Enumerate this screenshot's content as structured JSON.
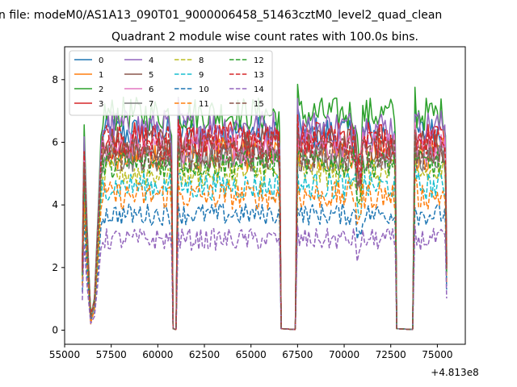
{
  "figure": {
    "suptitle": "n file: modeM0/AS1A13_090T01_9000006458_51463cztM0_level2_quad_clean",
    "title": "Quadrant 2 module wise count rates with 100.0s bins.",
    "offset_text": "+4.813e8"
  },
  "chart_data": {
    "type": "line",
    "title": "Quadrant 2 module wise count rates with 100.0s bins.",
    "xlabel": "",
    "ylabel": "",
    "x_offset": 481300000,
    "xlim": [
      55000,
      76500
    ],
    "ylim": [
      -0.45,
      9.05
    ],
    "xticks": [
      55000,
      57500,
      60000,
      62500,
      65000,
      67500,
      70000,
      72500,
      75000
    ],
    "xtick_labels": [
      "55000",
      "57500",
      "60000",
      "62500",
      "65000",
      "67500",
      "70000",
      "72500",
      "75000"
    ],
    "yticks": [
      0,
      2,
      4,
      6,
      8
    ],
    "ytick_labels": [
      "0",
      "2",
      "4",
      "6",
      "8"
    ],
    "grid": false,
    "legend_position": "top-left",
    "legend_columns": 4,
    "bins_per_segment": {
      "x_ranges": [
        [
          56000,
          60800
        ],
        [
          61100,
          66600
        ],
        [
          67500,
          72800
        ],
        [
          73800,
          75500
        ]
      ],
      "gaps": [
        [
          60800,
          61100
        ],
        [
          66600,
          67500
        ],
        [
          72800,
          73800
        ]
      ]
    },
    "series": [
      {
        "name": "0",
        "color": "#1f77b4",
        "dash": false,
        "level": 6.3
      },
      {
        "name": "1",
        "color": "#ff7f0e",
        "dash": false,
        "level": 5.6
      },
      {
        "name": "2",
        "color": "#2ca02c",
        "dash": false,
        "level": 6.9
      },
      {
        "name": "3",
        "color": "#d62728",
        "dash": false,
        "level": 6.1
      },
      {
        "name": "4",
        "color": "#9467bd",
        "dash": false,
        "level": 6.5
      },
      {
        "name": "5",
        "color": "#8c564b",
        "dash": false,
        "level": 5.9
      },
      {
        "name": "6",
        "color": "#e377c2",
        "dash": false,
        "level": 5.8
      },
      {
        "name": "7",
        "color": "#7f7f7f",
        "dash": false,
        "level": 5.5
      },
      {
        "name": "8",
        "color": "#bcbd22",
        "dash": true,
        "level": 5.0
      },
      {
        "name": "9",
        "color": "#17becf",
        "dash": true,
        "level": 4.6
      },
      {
        "name": "10",
        "color": "#1f77b4",
        "dash": true,
        "level": 3.7
      },
      {
        "name": "11",
        "color": "#ff7f0e",
        "dash": true,
        "level": 4.3
      },
      {
        "name": "12",
        "color": "#2ca02c",
        "dash": true,
        "level": 5.3
      },
      {
        "name": "13",
        "color": "#d62728",
        "dash": true,
        "level": 6.0
      },
      {
        "name": "14",
        "color": "#9467bd",
        "dash": true,
        "level": 2.9
      },
      {
        "name": "15",
        "color": "#8c564b",
        "dash": true,
        "level": 5.6
      }
    ]
  }
}
